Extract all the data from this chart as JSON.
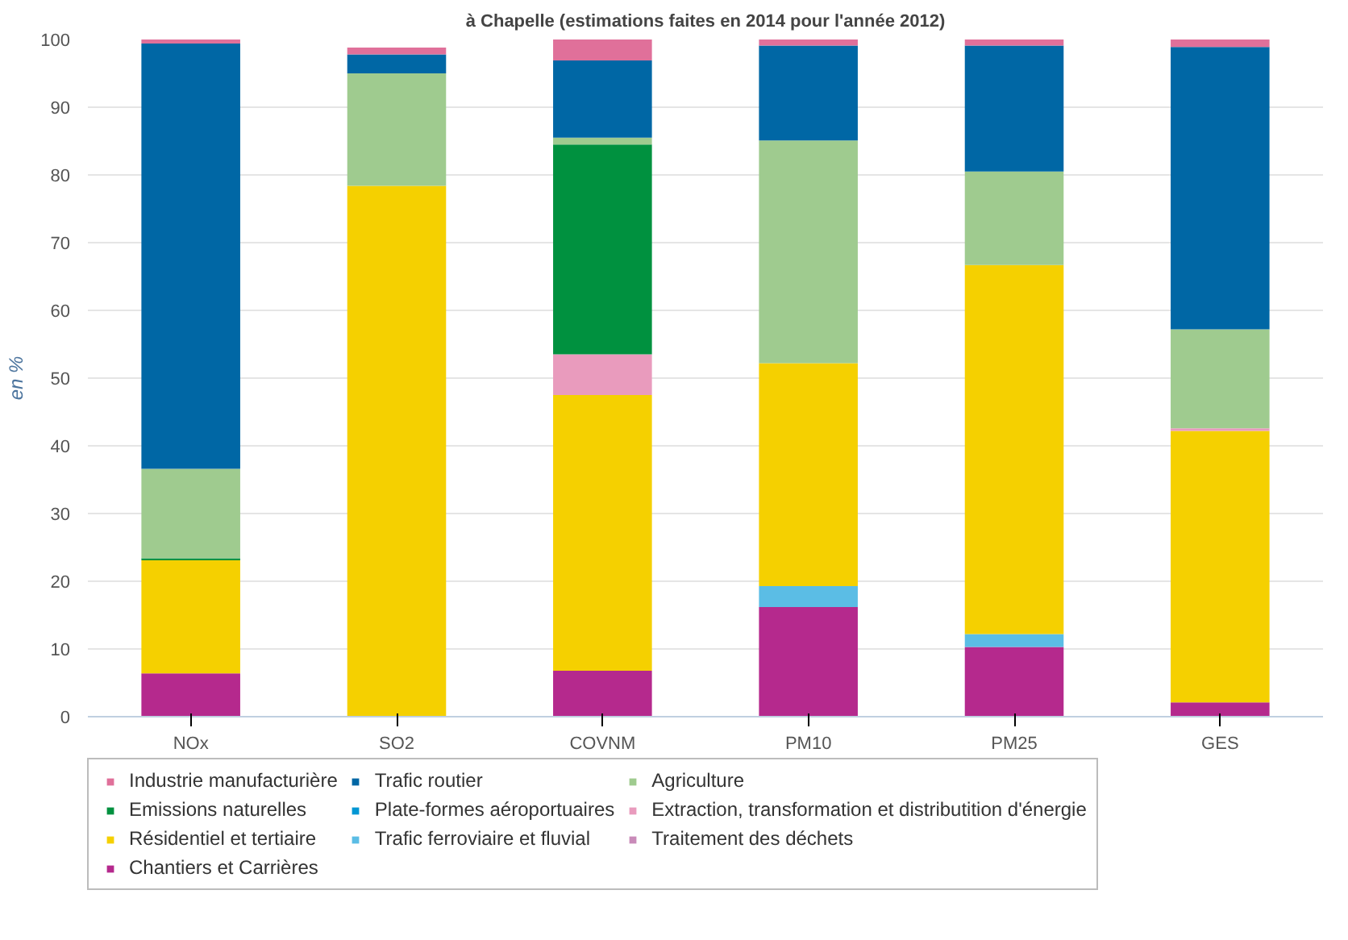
{
  "chart_data": {
    "type": "bar",
    "stacked": true,
    "title": "à Chapelle (estimations faites en 2014 pour l'année 2012)",
    "ylabel": "en %",
    "categories": [
      "NOx",
      "SO2",
      "COVNM",
      "PM10",
      "PM25",
      "GES"
    ],
    "ylim": [
      0,
      100
    ],
    "yticks": [
      0,
      10,
      20,
      30,
      40,
      50,
      60,
      70,
      80,
      90,
      100
    ],
    "grid": "y",
    "legend": "bottom",
    "series": [
      {
        "name": "Chantiers et Carrières",
        "color": "#b5298d",
        "values": [
          6.4,
          0,
          6.8,
          16.2,
          10.3,
          2.1
        ]
      },
      {
        "name": "Traitement des déchets",
        "color": "#c98bb9",
        "values": [
          0,
          0,
          0,
          0,
          0,
          0
        ]
      },
      {
        "name": "Trafic ferroviaire et fluvial",
        "color": "#5bbde5",
        "values": [
          0,
          0,
          0,
          3.1,
          1.9,
          0
        ]
      },
      {
        "name": "Résidentiel et tertiaire",
        "color": "#f5d000",
        "values": [
          16.7,
          78.4,
          40.7,
          32.9,
          54.5,
          40.1
        ]
      },
      {
        "name": "Extraction, transformation et distributition d'énergie",
        "color": "#e99bbd",
        "values": [
          0,
          0,
          6.0,
          0,
          0,
          0.4
        ]
      },
      {
        "name": "Plate-formes aéroportuaires",
        "color": "#0097d4",
        "values": [
          0,
          0,
          0,
          0,
          0,
          0
        ]
      },
      {
        "name": "Emissions naturelles",
        "color": "#00913f",
        "values": [
          0.3,
          0,
          31.0,
          0,
          0,
          0
        ]
      },
      {
        "name": "Agriculture",
        "color": "#9fcb8f",
        "values": [
          13.2,
          16.6,
          1.0,
          32.9,
          13.8,
          14.6
        ]
      },
      {
        "name": "Trafic routier",
        "color": "#0067a5",
        "values": [
          62.8,
          2.8,
          11.4,
          14.0,
          18.6,
          41.7
        ]
      },
      {
        "name": "Industrie manufacturière",
        "color": "#e0709a",
        "values": [
          0.6,
          1.0,
          3.1,
          0.9,
          0.9,
          1.1
        ]
      }
    ]
  }
}
